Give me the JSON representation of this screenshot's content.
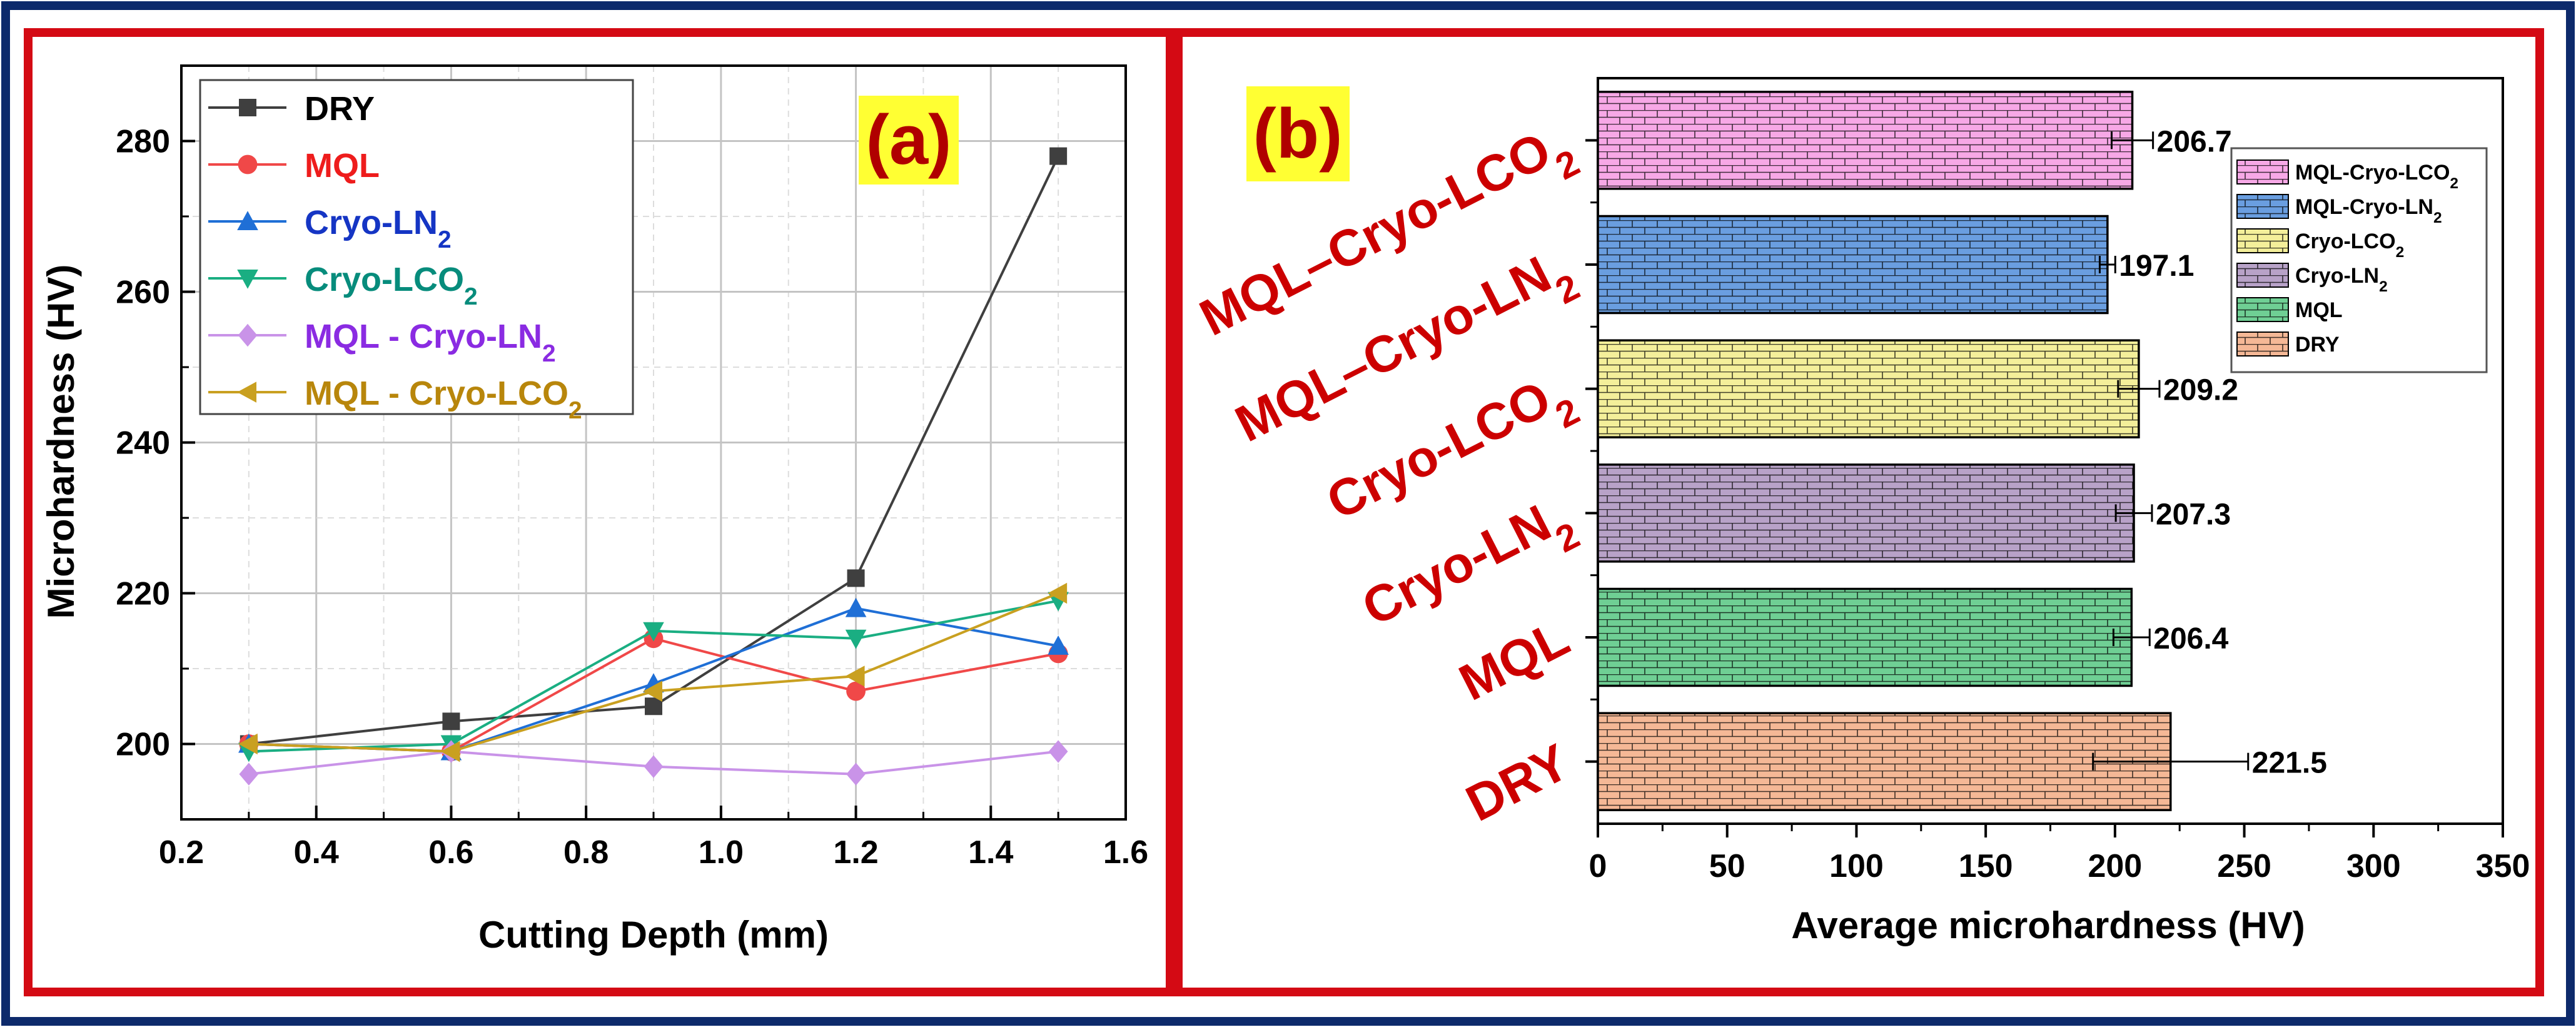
{
  "colors": {
    "outer_frame": "#0d2a6b",
    "panel_frame": "#d40a14",
    "badge_bg": "#ffff33",
    "badge_text": "#b00000",
    "category_label": "#cc0000",
    "grid": "#c8c8c8",
    "axis": "#000000"
  },
  "chart_data": [
    {
      "type": "line",
      "panel_label": "(a)",
      "xlabel": "Cutting Depth (mm)",
      "ylabel": "Microhardness (HV)",
      "xlim": [
        0.2,
        1.6
      ],
      "ylim": [
        190,
        290
      ],
      "xticks": [
        "0.2",
        "0.4",
        "0.6",
        "0.8",
        "1.0",
        "1.2",
        "1.4",
        "1.6"
      ],
      "yticks": [
        "200",
        "220",
        "240",
        "260",
        "280"
      ],
      "grid": true,
      "legend_position": "top-left",
      "x": [
        0.3,
        0.6,
        0.9,
        1.2,
        1.5
      ],
      "series": [
        {
          "name": "DRY",
          "name_base": "DRY",
          "name_sub": "",
          "marker": "square",
          "color": "#3f3f3f",
          "label_color": "#000000",
          "values": [
            200,
            203,
            205,
            222,
            278
          ]
        },
        {
          "name": "MQL",
          "name_base": "MQL",
          "name_sub": "",
          "marker": "circle",
          "color": "#f04848",
          "label_color": "#ee1c1c",
          "values": [
            200,
            199,
            214,
            207,
            212
          ]
        },
        {
          "name": "Cryo-LN2",
          "name_base": "Cryo-LN",
          "name_sub": "2",
          "marker": "triangle-up",
          "color": "#1f6fd6",
          "label_color": "#1535c4",
          "values": [
            200,
            199,
            208,
            218,
            213
          ]
        },
        {
          "name": "Cryo-LCO2",
          "name_base": "Cryo-LCO",
          "name_sub": "2",
          "marker": "triangle-down",
          "color": "#1aae82",
          "label_color": "#078c7c",
          "values": [
            199,
            200,
            215,
            214,
            219
          ]
        },
        {
          "name": "MQL - Cryo-LN2",
          "name_base": "MQL - Cryo-LN",
          "name_sub": "2",
          "marker": "diamond",
          "color": "#c993e8",
          "label_color": "#8a2be2",
          "values": [
            196,
            199,
            197,
            196,
            199
          ]
        },
        {
          "name": "MQL - Cryo-LCO2",
          "name_base": "MQL - Cryo-LCO",
          "name_sub": "2",
          "marker": "triangle-left",
          "color": "#c9a020",
          "label_color": "#b8860b",
          "values": [
            200,
            199,
            207,
            209,
            220
          ]
        }
      ]
    },
    {
      "type": "bar",
      "orientation": "horizontal",
      "panel_label": "(b)",
      "xlabel": "Average microhardness (HV)",
      "xlim": [
        0,
        350
      ],
      "xticks": [
        "0",
        "50",
        "100",
        "150",
        "200",
        "250",
        "300",
        "350"
      ],
      "legend_position": "top-right",
      "categories": [
        {
          "name": "DRY",
          "base": "DRY",
          "sub": ""
        },
        {
          "name": "MQL",
          "base": "MQL",
          "sub": ""
        },
        {
          "name": "Cryo-LN2",
          "base": "Cryo-LN",
          "sub": "2"
        },
        {
          "name": "Cryo-LCO2",
          "base": "Cryo-LCO",
          "sub": "2"
        },
        {
          "name": "MQL–Cryo-LN2",
          "base": "MQL–Cryo-LN",
          "sub": "2"
        },
        {
          "name": "MQL–Cryo-LCO2",
          "base": "MQL–Cryo-LCO",
          "sub": "2"
        }
      ],
      "values": [
        221.5,
        206.4,
        207.3,
        209.2,
        197.1,
        206.7
      ],
      "value_labels": [
        "221.5",
        "206.4",
        "207.3",
        "209.2",
        "197.1",
        "206.7"
      ],
      "errors": [
        30,
        7,
        7,
        8,
        3,
        8
      ],
      "bar_colors": [
        "#f5b896",
        "#6fcf94",
        "#b8a2c8",
        "#f4ef9a",
        "#6a9ee0",
        "#f7a8e6"
      ],
      "legend": [
        {
          "name": "MQL-Cryo-LCO2",
          "base": "MQL-Cryo-LCO",
          "sub": "2",
          "color": "#f7a8e6"
        },
        {
          "name": "MQL-Cryo-LN2",
          "base": "MQL-Cryo-LN",
          "sub": "2",
          "color": "#6a9ee0"
        },
        {
          "name": "Cryo-LCO2",
          "base": "Cryo-LCO",
          "sub": "2",
          "color": "#f4ef9a"
        },
        {
          "name": "Cryo-LN2",
          "base": "Cryo-LN",
          "sub": "2",
          "color": "#b8a2c8"
        },
        {
          "name": "MQL",
          "base": "MQL",
          "sub": "",
          "color": "#6fcf94"
        },
        {
          "name": "DRY",
          "base": "DRY",
          "sub": "",
          "color": "#f5b896"
        }
      ]
    }
  ]
}
